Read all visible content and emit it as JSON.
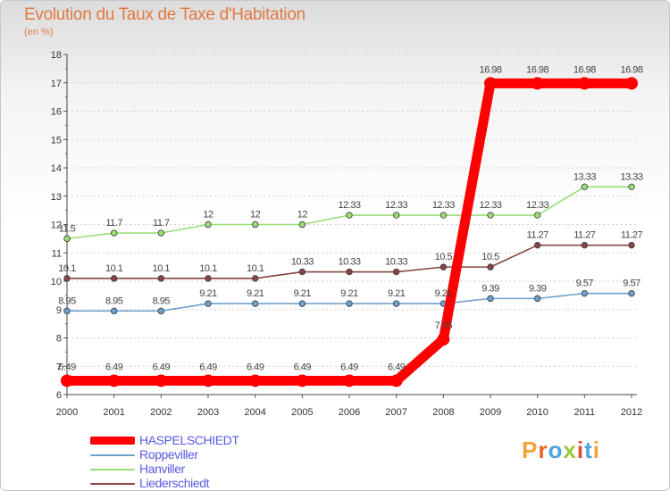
{
  "page": {
    "title": "Evolution du Taux de Taxe d'Habitation",
    "unit_note": "(en %)",
    "brand": "Proxiti",
    "brand_colors": [
      "#f2a33a",
      "#e8661e",
      "#4fa3e0",
      "#9bc93a",
      "#e34d2a",
      "#4fa3e0",
      "#f2a33a"
    ]
  },
  "chart_data": {
    "type": "line",
    "title": "Evolution du Taux de Taxe d'Habitation",
    "subtitle": "(en %)",
    "xlabel": "",
    "ylabel": "",
    "x": [
      "2000",
      "2001",
      "2002",
      "2003",
      "2004",
      "2005",
      "2006",
      "2007",
      "2008",
      "2009",
      "2010",
      "2011",
      "2012"
    ],
    "ylim": [
      6,
      18
    ],
    "yticks": [
      "6",
      "7",
      "8",
      "9",
      "10",
      "11",
      "12",
      "13",
      "14",
      "15",
      "16",
      "17",
      "18"
    ],
    "grid": "horizontal dashed",
    "legend_position": "bottom-left",
    "series": [
      {
        "name": "HASPELSCHIEDT",
        "color": "#ff0000",
        "emphasis": true,
        "values": [
          6.49,
          6.49,
          6.49,
          6.49,
          6.49,
          6.49,
          6.49,
          6.49,
          7.95,
          16.98,
          16.98,
          16.98,
          16.98
        ],
        "labels": [
          "6.49",
          "6.49",
          "6.49",
          "6.49",
          "6.49",
          "6.49",
          "6.49",
          "6.49",
          "7.95",
          "16.98",
          "16.98",
          "16.98",
          "16.98"
        ]
      },
      {
        "name": "Roppeviller",
        "color": "#6ea0cc",
        "values": [
          8.95,
          8.95,
          8.95,
          9.21,
          9.21,
          9.21,
          9.21,
          9.21,
          9.21,
          9.39,
          9.39,
          9.57,
          9.57
        ],
        "labels": [
          "8.95",
          "8.95",
          "8.95",
          "9.21",
          "9.21",
          "9.21",
          "9.21",
          "9.21",
          "9.21",
          "9.39",
          "9.39",
          "9.57",
          "9.57"
        ]
      },
      {
        "name": "Hanviller",
        "color": "#99dd77",
        "values": [
          11.5,
          11.7,
          11.7,
          12,
          12,
          12,
          12.33,
          12.33,
          12.33,
          12.33,
          12.33,
          13.33,
          13.33
        ],
        "labels": [
          "11.5",
          "11.7",
          "11.7",
          "12",
          "12",
          "12",
          "12.33",
          "12.33",
          "12.33",
          "12.33",
          "12.33",
          "13.33",
          "13.33"
        ]
      },
      {
        "name": "Liederschiedt",
        "color": "#884444",
        "values": [
          10.1,
          10.1,
          10.1,
          10.1,
          10.1,
          10.33,
          10.33,
          10.33,
          10.5,
          10.5,
          11.27,
          11.27,
          11.27
        ],
        "labels": [
          "10.1",
          "10.1",
          "10.1",
          "10.1",
          "10.1",
          "10.33",
          "10.33",
          "10.33",
          "10.5",
          "10.5",
          "11.27",
          "11.27",
          "11.27"
        ]
      }
    ]
  }
}
